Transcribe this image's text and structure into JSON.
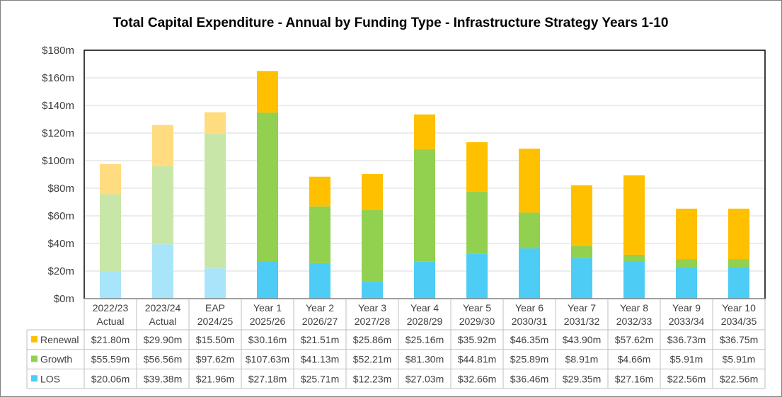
{
  "chart_data": {
    "type": "bar",
    "stacked": true,
    "title": "Total Capital Expenditure - Annual by Funding Type - Infrastructure Strategy Years 1-10",
    "categories": [
      [
        "2022/23",
        "Actual"
      ],
      [
        "2023/24",
        "Actual"
      ],
      [
        "EAP",
        "2024/25"
      ],
      [
        "Year 1",
        "2025/26"
      ],
      [
        "Year 2",
        "2026/27"
      ],
      [
        "Year 3",
        "2027/28"
      ],
      [
        "Year 4",
        "2028/29"
      ],
      [
        "Year 5",
        "2029/30"
      ],
      [
        "Year 6",
        "2030/31"
      ],
      [
        "Year 7",
        "2031/32"
      ],
      [
        "Year 8",
        "2032/33"
      ],
      [
        "Year 9",
        "2033/34"
      ],
      [
        "Year 10",
        "2034/35"
      ]
    ],
    "faded_categories": [
      0,
      1,
      2
    ],
    "ylim": [
      0,
      180
    ],
    "ytick_step": 20,
    "ytick_labels": [
      "$0m",
      "$20m",
      "$40m",
      "$60m",
      "$80m",
      "$100m",
      "$120m",
      "$140m",
      "$160m",
      "$180m"
    ],
    "ylabel": "",
    "xlabel": "",
    "grid": true,
    "series": [
      {
        "name": "LOS",
        "color": "#4dcdf5",
        "faded_color": "#a8e5fa",
        "values": [
          20.06,
          39.38,
          21.96,
          27.18,
          25.71,
          12.23,
          27.03,
          32.66,
          36.46,
          29.35,
          27.16,
          22.56,
          22.56
        ],
        "labels": [
          "$20.06m",
          "$39.38m",
          "$21.96m",
          "$27.18m",
          "$25.71m",
          "$12.23m",
          "$27.03m",
          "$32.66m",
          "$36.46m",
          "$29.35m",
          "$27.16m",
          "$22.56m",
          "$22.56m"
        ]
      },
      {
        "name": "Growth",
        "color": "#92d050",
        "faded_color": "#c8e6a7",
        "values": [
          55.59,
          56.56,
          97.62,
          107.63,
          41.13,
          52.21,
          81.3,
          44.81,
          25.89,
          8.91,
          4.66,
          5.91,
          5.91
        ],
        "labels": [
          "$55.59m",
          "$56.56m",
          "$97.62m",
          "$107.63m",
          "$41.13m",
          "$52.21m",
          "$81.30m",
          "$44.81m",
          "$25.89m",
          "$8.91m",
          "$4.66m",
          "$5.91m",
          "$5.91m"
        ]
      },
      {
        "name": "Renewal",
        "color": "#ffc000",
        "faded_color": "#ffdc80",
        "values": [
          21.8,
          29.9,
          15.5,
          30.16,
          21.51,
          25.86,
          25.16,
          35.92,
          46.35,
          43.9,
          57.62,
          36.73,
          36.75
        ],
        "labels": [
          "$21.80m",
          "$29.90m",
          "$15.50m",
          "$30.16m",
          "$21.51m",
          "$25.86m",
          "$25.16m",
          "$35.92m",
          "$46.35m",
          "$43.90m",
          "$57.62m",
          "$36.73m",
          "$36.75m"
        ]
      }
    ],
    "table_row_order": [
      "Renewal",
      "Growth",
      "LOS"
    ]
  }
}
